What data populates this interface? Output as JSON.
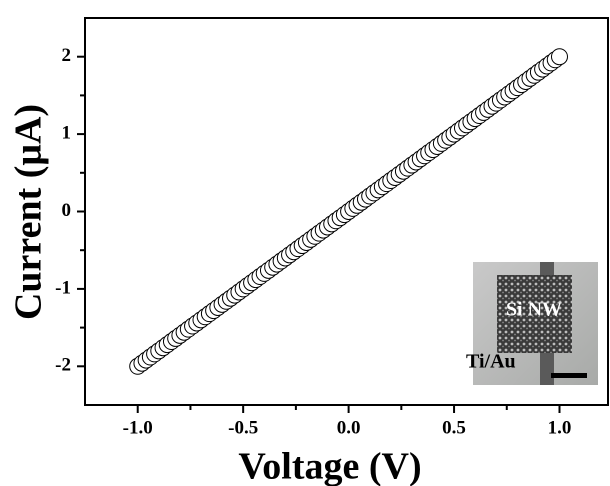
{
  "chart_data": {
    "type": "scatter",
    "xlabel": "Voltage (V)",
    "ylabel": "Current (μA)",
    "x": [
      -1,
      -0.98,
      -0.96,
      -0.94,
      -0.92,
      -0.9,
      -0.88,
      -0.86,
      -0.84,
      -0.82,
      -0.8,
      -0.78,
      -0.76,
      -0.74,
      -0.72,
      -0.7,
      -0.68,
      -0.66,
      -0.64,
      -0.62,
      -0.6,
      -0.58,
      -0.56,
      -0.54,
      -0.52,
      -0.5,
      -0.48,
      -0.46,
      -0.44,
      -0.42,
      -0.4,
      -0.38,
      -0.36,
      -0.34,
      -0.32,
      -0.3,
      -0.28,
      -0.26,
      -0.24,
      -0.22,
      -0.2,
      -0.18,
      -0.16,
      -0.14,
      -0.12,
      -0.1,
      -0.08,
      -0.06,
      -0.04,
      -0.02,
      0,
      0.02,
      0.04,
      0.06,
      0.08,
      0.1,
      0.12,
      0.14,
      0.16,
      0.18,
      0.2,
      0.22,
      0.24,
      0.26,
      0.28,
      0.3,
      0.32,
      0.34,
      0.36,
      0.38,
      0.4,
      0.42,
      0.44,
      0.46,
      0.48,
      0.5,
      0.52,
      0.54,
      0.56,
      0.58,
      0.6,
      0.62,
      0.64,
      0.66,
      0.68,
      0.7,
      0.72,
      0.74,
      0.76,
      0.78,
      0.8,
      0.82,
      0.84,
      0.86,
      0.88,
      0.9,
      0.92,
      0.94,
      0.96,
      0.98,
      1
    ],
    "values": [
      -2,
      -1.96,
      -1.92,
      -1.88,
      -1.84,
      -1.8,
      -1.76,
      -1.72,
      -1.68,
      -1.64,
      -1.6,
      -1.56,
      -1.52,
      -1.48,
      -1.44,
      -1.4,
      -1.36,
      -1.32,
      -1.28,
      -1.24,
      -1.2,
      -1.16,
      -1.12,
      -1.08,
      -1.04,
      -1,
      -0.96,
      -0.92,
      -0.88,
      -0.84,
      -0.8,
      -0.76,
      -0.72,
      -0.68,
      -0.64,
      -0.6,
      -0.56,
      -0.52,
      -0.48,
      -0.44,
      -0.4,
      -0.36,
      -0.32,
      -0.28,
      -0.24,
      -0.2,
      -0.16,
      -0.12,
      -0.08,
      -0.04,
      0,
      0.04,
      0.08,
      0.12,
      0.16,
      0.2,
      0.24,
      0.28,
      0.32,
      0.36,
      0.4,
      0.44,
      0.48,
      0.52,
      0.56,
      0.6,
      0.64,
      0.68,
      0.72,
      0.76,
      0.8,
      0.84,
      0.88,
      0.92,
      0.96,
      1,
      1.04,
      1.08,
      1.12,
      1.16,
      1.2,
      1.24,
      1.28,
      1.32,
      1.36,
      1.4,
      1.44,
      1.48,
      1.52,
      1.56,
      1.6,
      1.64,
      1.68,
      1.72,
      1.76,
      1.8,
      1.84,
      1.88,
      1.92,
      1.96,
      2
    ],
    "color": "#ffffff",
    "xlim": [
      -1.25,
      1.23
    ],
    "ylim": [
      -2.5,
      2.5
    ],
    "xticks": [
      {
        "value": -1,
        "label": "-1.0"
      },
      {
        "value": -0.5,
        "label": "-0.5"
      },
      {
        "value": 0,
        "label": "0.0"
      },
      {
        "value": 0.5,
        "label": "0.5"
      },
      {
        "value": 1,
        "label": "1.0"
      }
    ],
    "yticks": [
      -2,
      -1,
      0,
      1,
      2
    ],
    "xminorticks": [
      -0.75,
      -0.25,
      0.25,
      0.75
    ],
    "yminorticks": [
      -1.5,
      -0.5,
      0.5,
      1.5
    ],
    "annotations": [
      "Si NW",
      "Ti/Au"
    ]
  }
}
